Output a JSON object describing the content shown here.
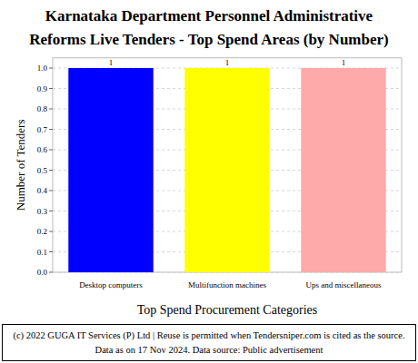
{
  "chart_data": {
    "type": "bar",
    "title": "Karnataka Department Personnel Administrative Reforms Live Tenders - Top Spend Areas (by Number)",
    "x_label": "Top Spend Procurement Categories",
    "y_label": "Number of Tenders",
    "categories": [
      "Desktop computers",
      "Multifunction machines",
      "Ups and miscellaneous"
    ],
    "values": [
      1,
      1,
      1
    ],
    "colors": [
      "#0000ff",
      "#ffff00",
      "#ffaaaa"
    ],
    "ylim": [
      0,
      1.05
    ],
    "yticks": [
      {
        "value": 0,
        "label": "0.0"
      },
      {
        "value": 0.1,
        "label": "0.1"
      },
      {
        "value": 0.2,
        "label": "0.2"
      },
      {
        "value": 0.3,
        "label": "0.3"
      },
      {
        "value": 0.4,
        "label": "0.4"
      },
      {
        "value": 0.5,
        "label": "0.5"
      },
      {
        "value": 0.6,
        "label": "0.6"
      },
      {
        "value": 0.7,
        "label": "0.7"
      },
      {
        "value": 0.8,
        "label": "0.8"
      },
      {
        "value": 0.9,
        "label": "0.9"
      },
      {
        "value": 1.0,
        "label": "1.0"
      }
    ],
    "grid": true,
    "data_labels": true,
    "footer": "(c) 2022 GUGA IT Services (P) Ltd | Reuse is permitted when Tendersniper.com is cited as the source. Data as on 17 Nov 2024. Data source: Public advertisement"
  }
}
